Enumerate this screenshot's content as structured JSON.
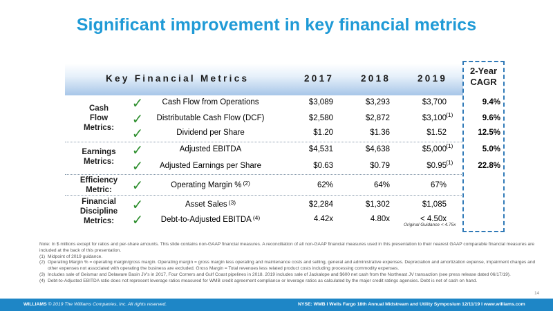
{
  "title": "Significant improvement in key financial metrics",
  "table": {
    "header_label": "Key Financial Metrics",
    "years": [
      "2017",
      "2018",
      "2019"
    ],
    "cagr_header_line1": "2-Year",
    "cagr_header_line2": "CAGR",
    "groups": [
      {
        "label_lines": [
          "Cash",
          "Flow",
          "Metrics:"
        ]
      },
      {
        "label_lines": [
          "Earnings",
          "Metrics:"
        ]
      },
      {
        "label_lines": [
          "Efficiency",
          "Metric:"
        ]
      },
      {
        "label_lines": [
          "Financial",
          "Discipline",
          "Metrics:"
        ]
      }
    ],
    "rows": [
      {
        "metric": "Cash Flow from Operations",
        "metric_note": "",
        "v2017": "$3,089",
        "v2018": "$3,293",
        "v2019": "$3,700",
        "v2019_note": "",
        "cagr": "9.4%"
      },
      {
        "metric": "Distributable Cash Flow (DCF)",
        "metric_note": "",
        "v2017": "$2,580",
        "v2018": "$2,872",
        "v2019": "$3,100",
        "v2019_note": "(1)",
        "cagr": "9.6%"
      },
      {
        "metric": "Dividend per Share",
        "metric_note": "",
        "v2017": "$1.20",
        "v2018": "$1.36",
        "v2019": "$1.52",
        "v2019_note": "",
        "cagr": "12.5%"
      },
      {
        "metric": "Adjusted EBITDA",
        "metric_note": "",
        "v2017": "$4,531",
        "v2018": "$4,638",
        "v2019": "$5,000",
        "v2019_note": "(1)",
        "cagr": "5.0%"
      },
      {
        "metric": "Adjusted Earnings per Share",
        "metric_note": "",
        "v2017": "$0.63",
        "v2018": "$0.79",
        "v2019": "$0.95",
        "v2019_note": "(1)",
        "cagr": "22.8%"
      },
      {
        "metric": "Operating Margin %",
        "metric_note": "(2)",
        "v2017": "62%",
        "v2018": "64%",
        "v2019": "67%",
        "v2019_note": "",
        "cagr": ""
      },
      {
        "metric": "Asset Sales",
        "metric_note": "(3)",
        "v2017": "$2,284",
        "v2018": "$1,302",
        "v2019": "$1,085",
        "v2019_note": "",
        "cagr": ""
      },
      {
        "metric": "Debt-to-Adjusted EBITDA",
        "metric_note": "(4)",
        "v2017": "4.42x",
        "v2018": "4.80x",
        "v2019": "< 4.50x",
        "v2019_note": "",
        "cagr": ""
      }
    ],
    "guidance_note": "Original Guidance < 4.75x",
    "check_glyph": "✓",
    "check_color": "#2f8f2f",
    "check_icon": "green-checkmark-icon"
  },
  "notes": {
    "intro": "Note: In $ millions except for ratios and per-share amounts. This slide contains non-GAAP financial measures. A reconciliation of all non-GAAP financial measures used in this presentation to their nearest GAAP comparable financial measures are included at the back of this presentation.",
    "items": [
      {
        "num": "(1)",
        "text": "Midpoint of 2019 guidance."
      },
      {
        "num": "(2)",
        "text": "Operating Margin % = operating margin/gross margin. Operating margin = gross margin less operating and maintenance costs and selling, general and administrative expenses. Depreciation and amortization expense, impairment charges and other expenses not associated with operating the business are excluded. Gross Margin = Total revenues less related product costs including processing commodity expenses."
      },
      {
        "num": "(3)",
        "text": "Includes sale of Geismar and Delaware Basin JV's in 2017, Four Corners and Gulf Coast pipelines in 2018. 2019 includes sale of Jackalope and $600 net cash from the Northeast JV transaction (see press release dated 06/17/19)."
      },
      {
        "num": "(4)",
        "text": "Debt-to-Adjusted EBITDA ratio does not represent leverage ratios measured for WMB credit agreement compliance or leverage ratios as calculated by the major credit ratings agencies. Debt is net of cash on hand."
      }
    ]
  },
  "footer": {
    "brand": "WILLIAMS",
    "copyright": "© 2019 The Williams Companies, Inc. All rights reserved.",
    "event": "NYSE: WMB  I  Wells Fargo 18th Annual Midstream and Utility Symposium 12/11/19  I  www.williams.com",
    "page_number": "14",
    "bar_color": "#1e86c6"
  },
  "colors": {
    "title": "#1f9ad6",
    "cagr_border": "#2f79b7"
  }
}
